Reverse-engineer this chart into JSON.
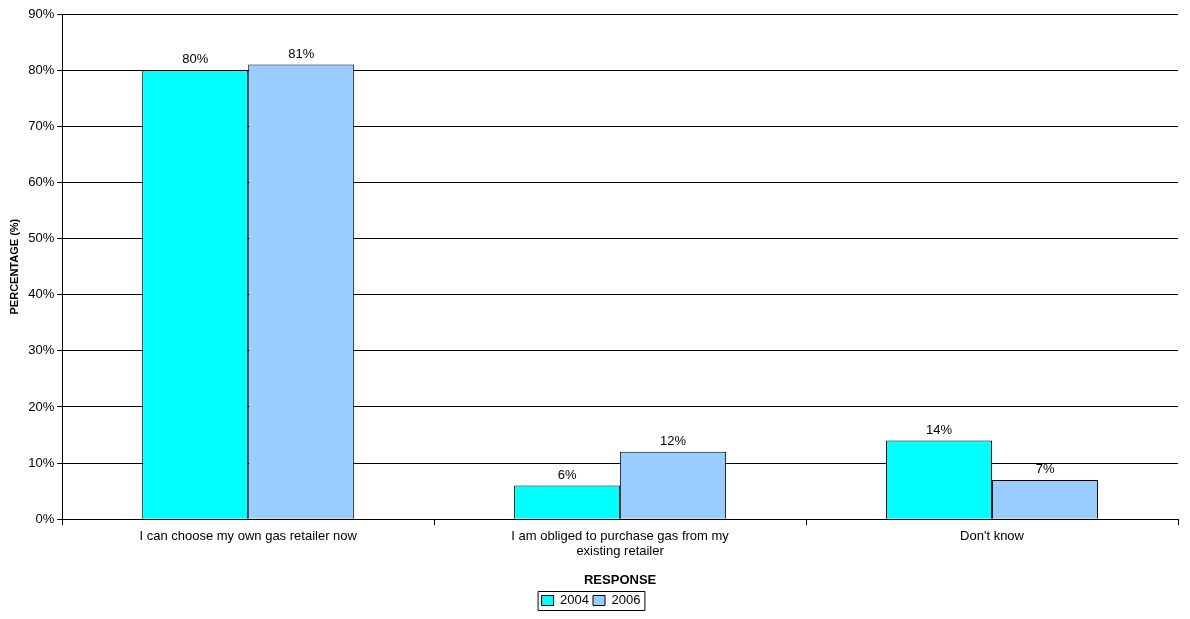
{
  "chart_data": {
    "type": "bar",
    "xlabel": "RESPONSE",
    "ylabel": "PERCENTAGE (%)",
    "categories": [
      "I can choose my own gas retailer now",
      "I am obliged to purchase gas from my existing retailer",
      "Don't know"
    ],
    "series": [
      {
        "name": "2004",
        "color": "#00ffff",
        "values": [
          80,
          6,
          14
        ],
        "value_labels": [
          "80%",
          "6%",
          "14%"
        ]
      },
      {
        "name": "2006",
        "color": "#99ccff",
        "values": [
          81,
          12,
          7
        ],
        "value_labels": [
          "81%",
          "12%",
          "7%"
        ]
      }
    ],
    "ylim": [
      0,
      90
    ],
    "yticks": [
      {
        "value": 0,
        "label": "0%"
      },
      {
        "value": 10,
        "label": "10%"
      },
      {
        "value": 20,
        "label": "20%"
      },
      {
        "value": 30,
        "label": "30%"
      },
      {
        "value": 40,
        "label": "40%"
      },
      {
        "value": 50,
        "label": "50%"
      },
      {
        "value": 60,
        "label": "60%"
      },
      {
        "value": 70,
        "label": "70%"
      },
      {
        "value": 80,
        "label": "80%"
      },
      {
        "value": 90,
        "label": "90%"
      }
    ],
    "grid": "y",
    "legend": "bottom"
  }
}
